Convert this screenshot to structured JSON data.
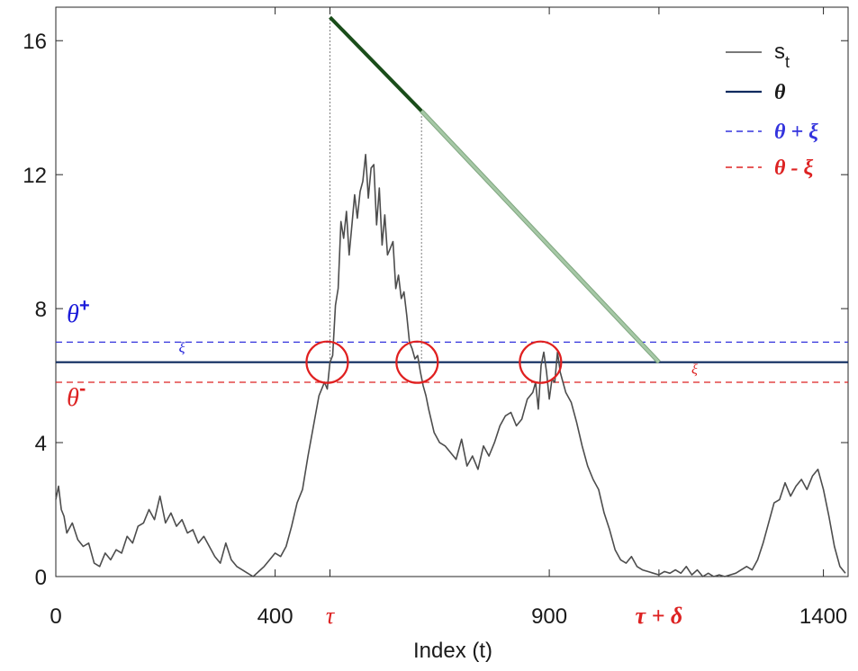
{
  "chart_data": {
    "type": "line",
    "title": "",
    "xlabel": "Index (t)",
    "ylabel": "",
    "xlim": [
      0,
      1445
    ],
    "ylim": [
      0,
      17
    ],
    "x_ticks": [
      0,
      400,
      900,
      1400
    ],
    "x_tick_labels": [
      "0",
      "400",
      "900",
      "1400"
    ],
    "x_marker_ticks": [
      500,
      1100
    ],
    "y_ticks": [
      0,
      4,
      8,
      12,
      16
    ],
    "y_tick_labels": [
      "0",
      "4",
      "8",
      "12",
      "16"
    ],
    "grid": false,
    "legend_position": "top-right",
    "legend": [
      {
        "label": "s",
        "sub": "t",
        "style": "solid",
        "color": "#4d4d4d"
      },
      {
        "label": "θ",
        "style": "solid",
        "color": "#0d2a5e"
      },
      {
        "label": "θ + ξ",
        "style": "dashed",
        "color": "#3333dd"
      },
      {
        "label": "θ - ξ",
        "style": "dashed",
        "color": "#dd2222"
      }
    ],
    "theta": 6.4,
    "xi": 0.6,
    "series": [
      {
        "name": "s_t",
        "color": "#4d4d4d",
        "x": [
          0,
          5,
          10,
          15,
          20,
          30,
          40,
          50,
          60,
          70,
          80,
          90,
          100,
          110,
          120,
          130,
          140,
          150,
          160,
          170,
          180,
          190,
          200,
          210,
          220,
          230,
          240,
          250,
          260,
          270,
          280,
          290,
          300,
          310,
          320,
          330,
          340,
          350,
          360,
          370,
          380,
          390,
          400,
          410,
          420,
          430,
          440,
          450,
          460,
          470,
          480,
          490,
          495,
          500,
          505,
          510,
          515,
          520,
          525,
          530,
          535,
          540,
          545,
          550,
          555,
          560,
          565,
          570,
          575,
          580,
          585,
          590,
          595,
          600,
          605,
          610,
          615,
          620,
          625,
          630,
          635,
          640,
          645,
          650,
          655,
          660,
          665,
          670,
          675,
          680,
          690,
          700,
          710,
          720,
          730,
          740,
          750,
          760,
          770,
          780,
          790,
          800,
          810,
          820,
          830,
          840,
          850,
          860,
          870,
          875,
          880,
          885,
          890,
          895,
          900,
          905,
          910,
          915,
          920,
          925,
          930,
          940,
          950,
          960,
          970,
          980,
          990,
          1000,
          1010,
          1020,
          1030,
          1040,
          1050,
          1060,
          1070,
          1080,
          1090,
          1100,
          1110,
          1120,
          1130,
          1140,
          1150,
          1160,
          1170,
          1180,
          1190,
          1200,
          1210,
          1220,
          1230,
          1240,
          1250,
          1260,
          1270,
          1280,
          1290,
          1300,
          1310,
          1320,
          1330,
          1340,
          1350,
          1360,
          1370,
          1380,
          1390,
          1400,
          1410,
          1420,
          1430,
          1440
        ],
        "y": [
          2.3,
          2.7,
          2.0,
          1.8,
          1.3,
          1.6,
          1.1,
          0.9,
          1.0,
          0.4,
          0.3,
          0.7,
          0.5,
          0.8,
          0.7,
          1.2,
          1.0,
          1.5,
          1.6,
          2.0,
          1.7,
          2.4,
          1.6,
          1.9,
          1.5,
          1.7,
          1.3,
          1.4,
          1.0,
          1.2,
          0.9,
          0.6,
          0.4,
          1.0,
          0.5,
          0.3,
          0.2,
          0.1,
          0.0,
          0.15,
          0.3,
          0.5,
          0.7,
          0.6,
          0.9,
          1.5,
          2.2,
          2.6,
          3.6,
          4.5,
          5.4,
          5.8,
          5.6,
          6.4,
          6.6,
          8.1,
          8.6,
          10.6,
          10.1,
          10.9,
          9.6,
          10.5,
          11.4,
          10.7,
          11.5,
          11.8,
          12.6,
          11.3,
          12.2,
          12.3,
          10.5,
          11.6,
          9.9,
          10.8,
          9.6,
          9.8,
          10.0,
          8.6,
          9.0,
          8.3,
          8.5,
          7.8,
          7.0,
          6.8,
          6.5,
          6.6,
          6.1,
          5.7,
          5.4,
          5.0,
          4.3,
          4.0,
          3.9,
          3.7,
          3.5,
          4.1,
          3.3,
          3.6,
          3.2,
          3.9,
          3.6,
          4.0,
          4.5,
          4.8,
          4.9,
          4.5,
          4.7,
          5.3,
          5.5,
          5.8,
          5.0,
          6.3,
          6.7,
          6.1,
          5.3,
          5.9,
          5.8,
          6.7,
          6.1,
          5.8,
          5.5,
          5.2,
          4.6,
          3.9,
          3.3,
          2.9,
          2.6,
          1.9,
          1.4,
          0.8,
          0.5,
          0.4,
          0.6,
          0.3,
          0.2,
          0.15,
          0.1,
          0.05,
          0.15,
          0.1,
          0.2,
          0.1,
          0.3,
          0.05,
          0.2,
          0.0,
          0.1,
          0.0,
          0.05,
          0.0,
          0.05,
          0.1,
          0.2,
          0.3,
          0.2,
          0.5,
          1.0,
          1.6,
          2.2,
          2.3,
          2.8,
          2.4,
          2.7,
          2.9,
          2.6,
          3.0,
          3.2,
          2.6,
          1.8,
          0.9,
          0.3,
          0.1
        ]
      },
      {
        "name": "θ",
        "x": [
          0,
          1445
        ],
        "y": [
          6.4,
          6.4
        ],
        "color": "#0d2a5e"
      },
      {
        "name": "θ + ξ",
        "x": [
          0,
          1445
        ],
        "y": [
          7.0,
          7.0
        ],
        "color": "#3333dd"
      },
      {
        "name": "θ - ξ",
        "x": [
          0,
          1445
        ],
        "y": [
          5.8,
          5.8
        ],
        "color": "#dd2222"
      }
    ],
    "decay_line": {
      "dark_segment": {
        "x": [
          500,
          667
        ],
        "y": [
          16.7,
          13.9
        ],
        "color": "#1a4d1a"
      },
      "light_segment": {
        "x": [
          667,
          1100
        ],
        "y": [
          13.9,
          6.4
        ],
        "color": "#a6c8a6"
      }
    },
    "vertical_dotted": [
      {
        "x": 500,
        "y": [
          6.4,
          16.7
        ]
      },
      {
        "x": 667,
        "y": [
          6.4,
          13.9
        ]
      }
    ],
    "crossing_circles": [
      {
        "x": 495,
        "y": 6.4
      },
      {
        "x": 659,
        "y": 6.4
      },
      {
        "x": 884,
        "y": 6.4
      }
    ],
    "annotations": [
      {
        "id": "theta-plus",
        "text": "θ",
        "sup": "+",
        "color": "#1a1ad9",
        "x": 20,
        "y": 7.6
      },
      {
        "id": "theta-minus",
        "text": "θ",
        "sup": "-",
        "color": "#dd2222",
        "x": 20,
        "y": 5.1
      },
      {
        "id": "xi-left",
        "text": "ξ",
        "color": "#1a1ad9",
        "x": 230,
        "y": 6.7
      },
      {
        "id": "xi-right",
        "text": "ξ",
        "color": "#dd2222",
        "x": 1165,
        "y": 6.05
      },
      {
        "id": "tau",
        "text": "τ",
        "color": "#dd2222",
        "x": 500
      },
      {
        "id": "tau-delta",
        "text": "τ + δ",
        "color": "#dd2222",
        "x": 1100
      }
    ]
  }
}
